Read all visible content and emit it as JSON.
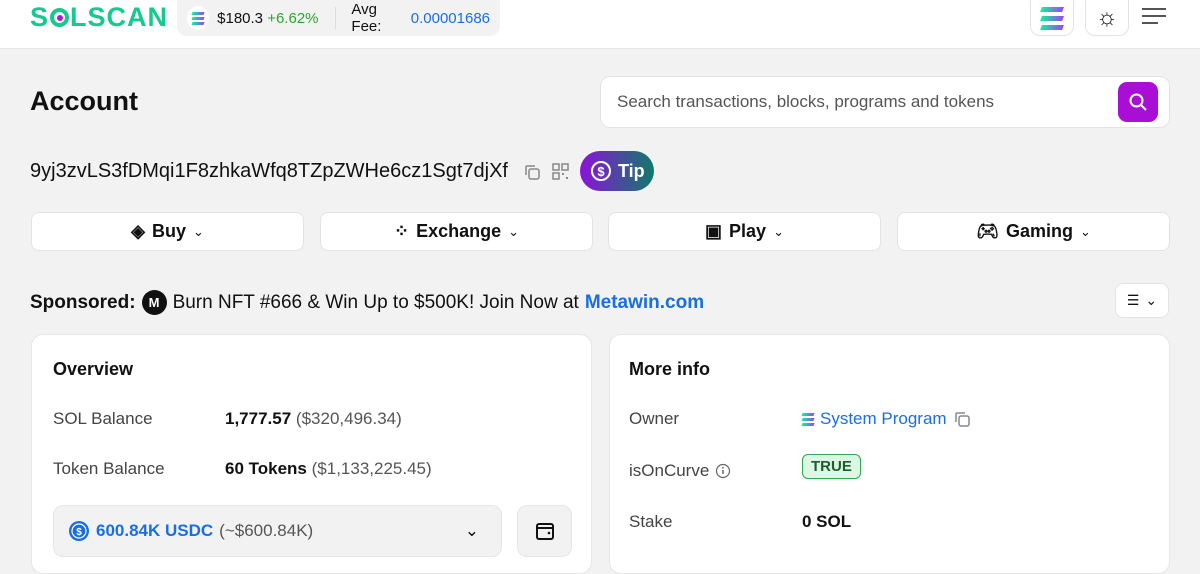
{
  "header": {
    "logo": "SOLSCAN",
    "price": "$180.3",
    "change": "+6.62%",
    "fee_label": "Avg Fee:",
    "fee_value": "0.00001686",
    "colors": {
      "brand": "#17c98f",
      "up": "#2ea52e",
      "link": "#1a6fe0",
      "accent": "#a90ed6"
    }
  },
  "page": {
    "title": "Account",
    "search_placeholder": "Search transactions, blocks, programs and tokens",
    "address": "9yj3zvLS3fDMqi1F8zhkaWfq8TZpZWHe6cz1Sgt7djXf",
    "tip_label": "Tip"
  },
  "actions": [
    {
      "label": "Buy",
      "icon": "buy-icon"
    },
    {
      "label": "Exchange",
      "icon": "exchange-icon"
    },
    {
      "label": "Play",
      "icon": "play-icon"
    },
    {
      "label": "Gaming",
      "icon": "gamepad-icon"
    }
  ],
  "sponsored": {
    "label": "Sponsored:",
    "text": "Burn NFT #666 & Win Up to $500K! Join Now at",
    "link": "Metawin.com"
  },
  "overview": {
    "title": "Overview",
    "sol_label": "SOL Balance",
    "sol_value": "1,777.57",
    "sol_usd": "($320,496.34)",
    "token_label": "Token Balance",
    "token_value": "60 Tokens",
    "token_usd": "($1,133,225.45)",
    "selected_token": "600.84K USDC",
    "selected_usd": "(~$600.84K)"
  },
  "more_info": {
    "title": "More info",
    "owner_label": "Owner",
    "owner_value": "System Program",
    "curve_label": "isOnCurve",
    "curve_value": "TRUE",
    "stake_label": "Stake",
    "stake_value": "0 SOL"
  }
}
